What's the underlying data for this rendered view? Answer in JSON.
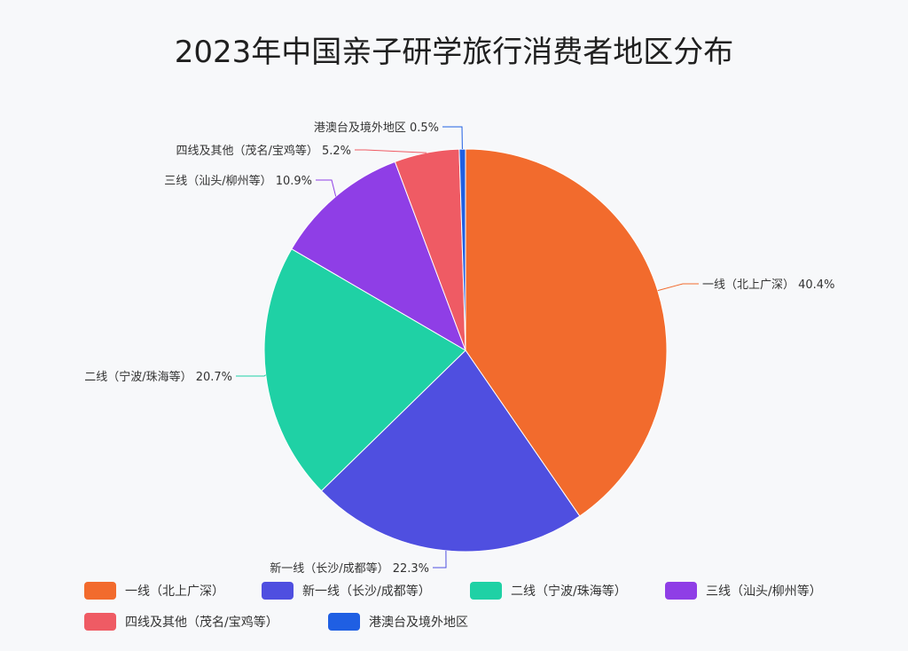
{
  "chart_data": {
    "type": "pie",
    "title": "2023年中国亲子研学旅行消费者地区分布",
    "start_angle_deg": 0,
    "direction": "clockwise",
    "legend_placement": "bottom",
    "slices": [
      {
        "label": "一线（北上广深）",
        "value": 40.4,
        "value_label": "40.4%",
        "color": "#f26b2d"
      },
      {
        "label": "新一线（长沙/成都等）",
        "value": 22.3,
        "value_label": "22.3%",
        "color": "#4f4fe0"
      },
      {
        "label": "二线（宁波/珠海等）",
        "value": 20.7,
        "value_label": "20.7%",
        "color": "#1fd1a5"
      },
      {
        "label": "三线（汕头/柳州等）",
        "value": 10.9,
        "value_label": "10.9%",
        "color": "#8f3ee6"
      },
      {
        "label": "四线及其他（茂名/宝鸡等）",
        "value": 5.2,
        "value_label": "5.2%",
        "color": "#ef5b64"
      },
      {
        "label": "港澳台及境外地区",
        "value": 0.5,
        "value_label": "0.5%",
        "color": "#1f5fe3"
      }
    ]
  }
}
